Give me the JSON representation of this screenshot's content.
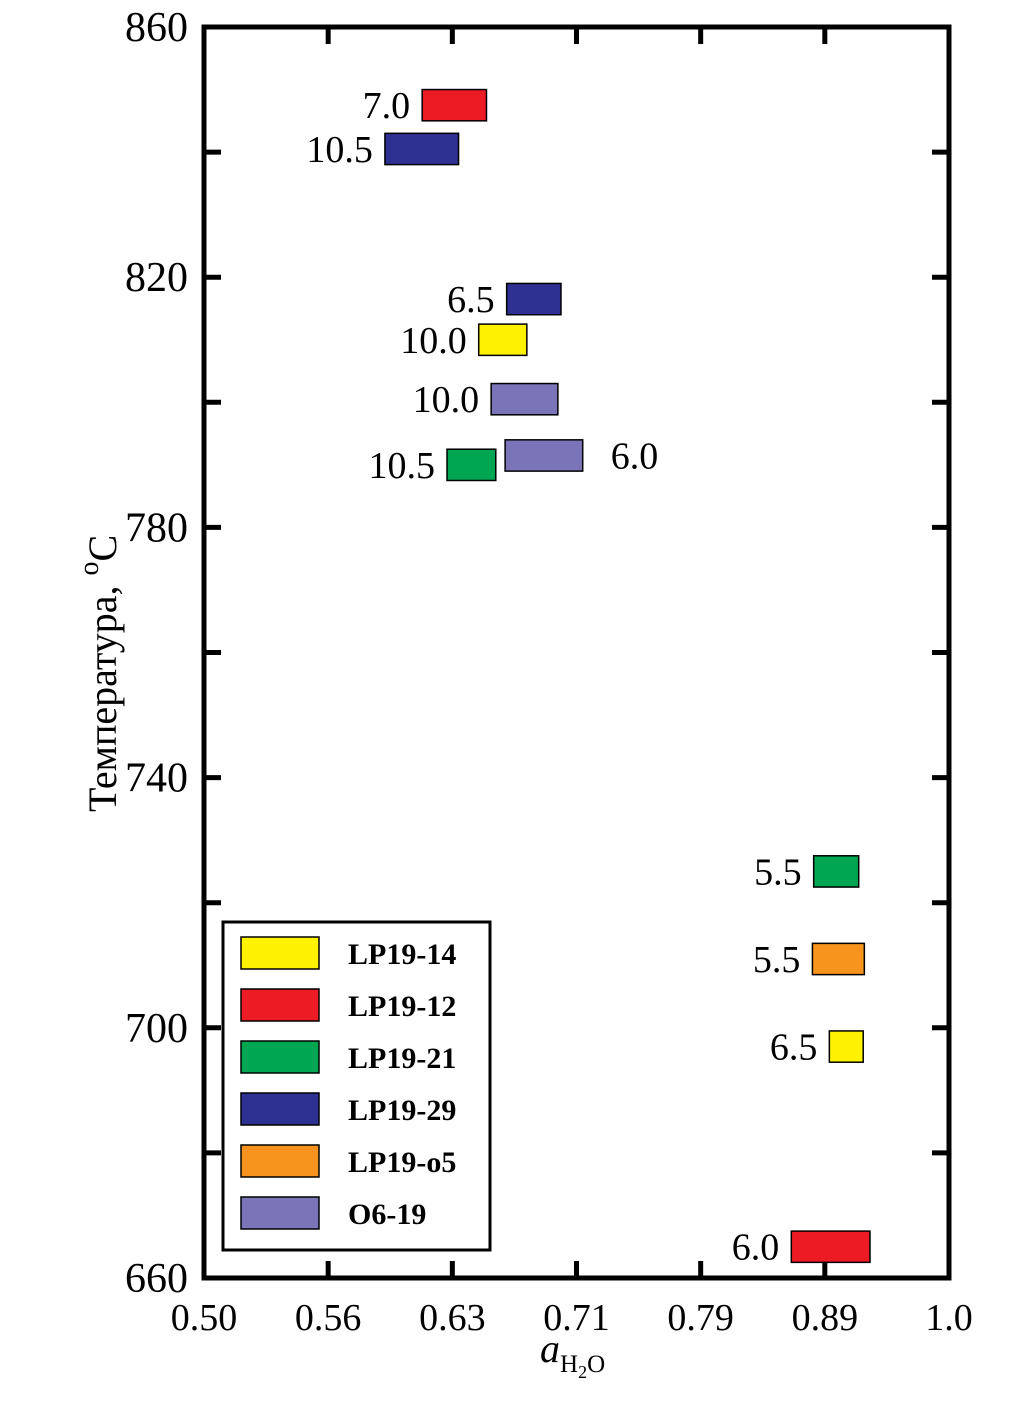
{
  "chart_data": {
    "type": "bar",
    "subtype": "range-bars",
    "title": "",
    "xlabel": {
      "main": "a",
      "sub": "H",
      "sub2": "2",
      "sub3": "O"
    },
    "ylabel": {
      "main": "Температура,",
      "sup": "o",
      "unit": "C"
    },
    "x_tick_labels": [
      "0.50",
      "0.56",
      "0.63",
      "0.71",
      "0.79",
      "0.89",
      "1.0"
    ],
    "y_ticks": [
      660,
      680,
      700,
      720,
      740,
      760,
      780,
      800,
      820,
      840,
      860
    ],
    "y_tick_labels": [
      "660",
      "700",
      "740",
      "780",
      "820",
      "860"
    ],
    "ylim": [
      660,
      860
    ],
    "legend_position": "bottom-left",
    "grid": false,
    "series": [
      {
        "name": "LP19-14",
        "color": "#FFF200"
      },
      {
        "name": "LP19-12",
        "color": "#ED1C24"
      },
      {
        "name": "LP19-21",
        "color": "#00A651"
      },
      {
        "name": "LP19-29",
        "color": "#2E3192"
      },
      {
        "name": "LP19-o5",
        "color": "#F7941D"
      },
      {
        "name": "O6-19",
        "color": "#7B74B8"
      }
    ],
    "bars": [
      {
        "series": "LP19-12",
        "x_range": [
          0.613,
          0.652
        ],
        "y_range": [
          845,
          850
        ],
        "label": "7.0",
        "label_side": "left"
      },
      {
        "series": "LP19-29",
        "x_range": [
          0.592,
          0.634
        ],
        "y_range": [
          838,
          843
        ],
        "label": "10.5",
        "label_side": "left"
      },
      {
        "series": "LP19-29",
        "x_range": [
          0.665,
          0.7
        ],
        "y_range": [
          814,
          819
        ],
        "label": "6.5",
        "label_side": "left"
      },
      {
        "series": "LP19-14",
        "x_range": [
          0.647,
          0.678
        ],
        "y_range": [
          807.5,
          812.5
        ],
        "label": "10.0",
        "label_side": "left"
      },
      {
        "series": "O6-19",
        "x_range": [
          0.655,
          0.698
        ],
        "y_range": [
          798,
          803
        ],
        "label": "10.0",
        "label_side": "left"
      },
      {
        "series": "O6-19",
        "x_range": [
          0.664,
          0.714
        ],
        "y_range": [
          789,
          794
        ],
        "label": "6.0",
        "label_side": "right"
      },
      {
        "series": "LP19-21",
        "x_range": [
          0.627,
          0.658
        ],
        "y_range": [
          787.5,
          792.5
        ],
        "label": "10.5",
        "label_side": "left"
      },
      {
        "series": "LP19-21",
        "x_range": [
          0.881,
          0.92
        ],
        "y_range": [
          722.5,
          727.5
        ],
        "label": "5.5",
        "label_side": "left"
      },
      {
        "series": "LP19-o5",
        "x_range": [
          0.88,
          0.925
        ],
        "y_range": [
          708.5,
          713.5
        ],
        "label": "5.5",
        "label_side": "left"
      },
      {
        "series": "LP19-14",
        "x_range": [
          0.894,
          0.924
        ],
        "y_range": [
          694.5,
          699.5
        ],
        "label": "6.5",
        "label_side": "left"
      },
      {
        "series": "LP19-12",
        "x_range": [
          0.863,
          0.93
        ],
        "y_range": [
          662.5,
          667.5
        ],
        "label": "6.0",
        "label_side": "left"
      }
    ]
  }
}
